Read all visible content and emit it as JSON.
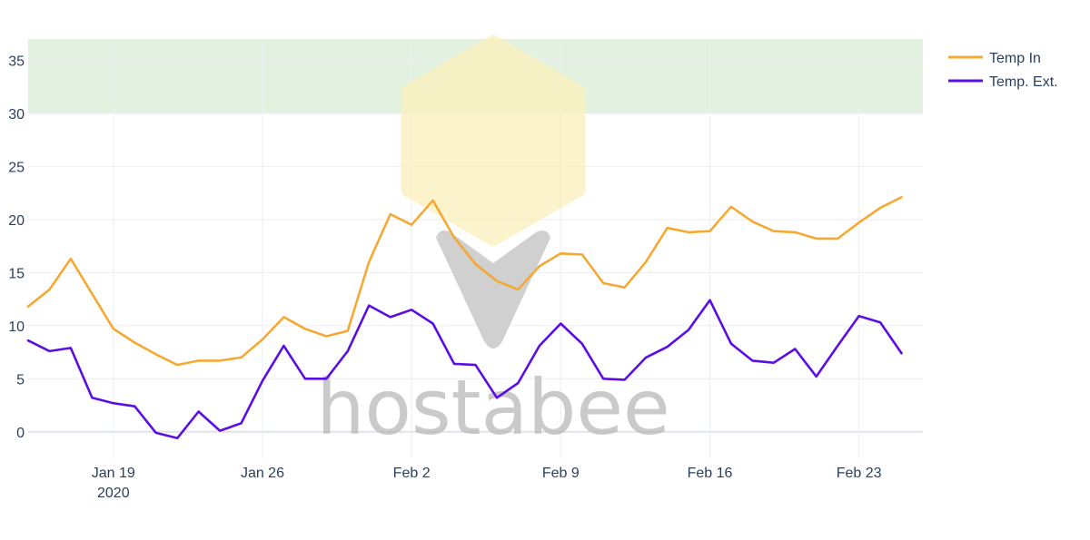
{
  "chart_data": {
    "type": "line",
    "x_axis_type": "date",
    "xlim": [
      "2020-01-15",
      "2020-02-26"
    ],
    "ylim": [
      -2.5,
      37
    ],
    "yticks": [
      0,
      5,
      10,
      15,
      20,
      25,
      30,
      35
    ],
    "xticks": [
      {
        "date": "2020-01-19",
        "label": "Jan 19",
        "sublabel": "2020"
      },
      {
        "date": "2020-01-26",
        "label": "Jan 26",
        "sublabel": ""
      },
      {
        "date": "2020-02-02",
        "label": "Feb 2",
        "sublabel": ""
      },
      {
        "date": "2020-02-09",
        "label": "Feb 9",
        "sublabel": ""
      },
      {
        "date": "2020-02-16",
        "label": "Feb 16",
        "sublabel": ""
      },
      {
        "date": "2020-02-23",
        "label": "Feb 23",
        "sublabel": ""
      }
    ],
    "shaded_band": {
      "y0": 30,
      "y1": 37,
      "color": "#e3f2e0"
    },
    "grid": true,
    "legend_position": "top-right",
    "x": [
      "2020-01-15",
      "2020-01-16",
      "2020-01-17",
      "2020-01-18",
      "2020-01-19",
      "2020-01-20",
      "2020-01-21",
      "2020-01-22",
      "2020-01-23",
      "2020-01-24",
      "2020-01-25",
      "2020-01-26",
      "2020-01-27",
      "2020-01-28",
      "2020-01-29",
      "2020-01-30",
      "2020-01-31",
      "2020-02-01",
      "2020-02-02",
      "2020-02-03",
      "2020-02-04",
      "2020-02-05",
      "2020-02-06",
      "2020-02-07",
      "2020-02-08",
      "2020-02-09",
      "2020-02-10",
      "2020-02-11",
      "2020-02-12",
      "2020-02-13",
      "2020-02-14",
      "2020-02-15",
      "2020-02-16",
      "2020-02-17",
      "2020-02-18",
      "2020-02-19",
      "2020-02-20",
      "2020-02-21",
      "2020-02-22",
      "2020-02-23",
      "2020-02-24",
      "2020-02-25"
    ],
    "series": [
      {
        "name": "Temp In",
        "color": "#f5a935",
        "values": [
          11.8,
          13.4,
          16.3,
          13.0,
          9.7,
          8.4,
          7.3,
          6.3,
          6.7,
          6.7,
          7.0,
          8.7,
          10.8,
          9.7,
          9.0,
          9.5,
          16.0,
          20.5,
          19.5,
          21.8,
          18.3,
          15.8,
          14.2,
          13.4,
          15.6,
          16.8,
          16.7,
          14.0,
          13.6,
          16.0,
          19.2,
          18.8,
          18.9,
          21.2,
          19.8,
          18.9,
          18.8,
          18.2,
          18.2,
          19.7,
          21.1,
          22.1
        ]
      },
      {
        "name": "Temp. Ext.",
        "color": "#5b0ee3",
        "values": [
          8.6,
          7.6,
          7.9,
          3.2,
          2.7,
          2.4,
          -0.1,
          -0.6,
          1.9,
          0.1,
          0.8,
          4.8,
          8.1,
          5.0,
          5.0,
          7.6,
          11.9,
          10.8,
          11.5,
          10.2,
          6.4,
          6.3,
          3.2,
          4.6,
          8.1,
          10.2,
          8.3,
          5.0,
          4.9,
          7.0,
          8.0,
          9.6,
          12.4,
          8.3,
          6.7,
          6.5,
          7.8,
          5.2,
          8.1,
          10.9,
          10.3,
          7.4
        ]
      }
    ]
  },
  "watermark": {
    "text": "hostabee",
    "logo_fill": "#fbf1bf",
    "logo_arrow": "#c8c8c8"
  }
}
